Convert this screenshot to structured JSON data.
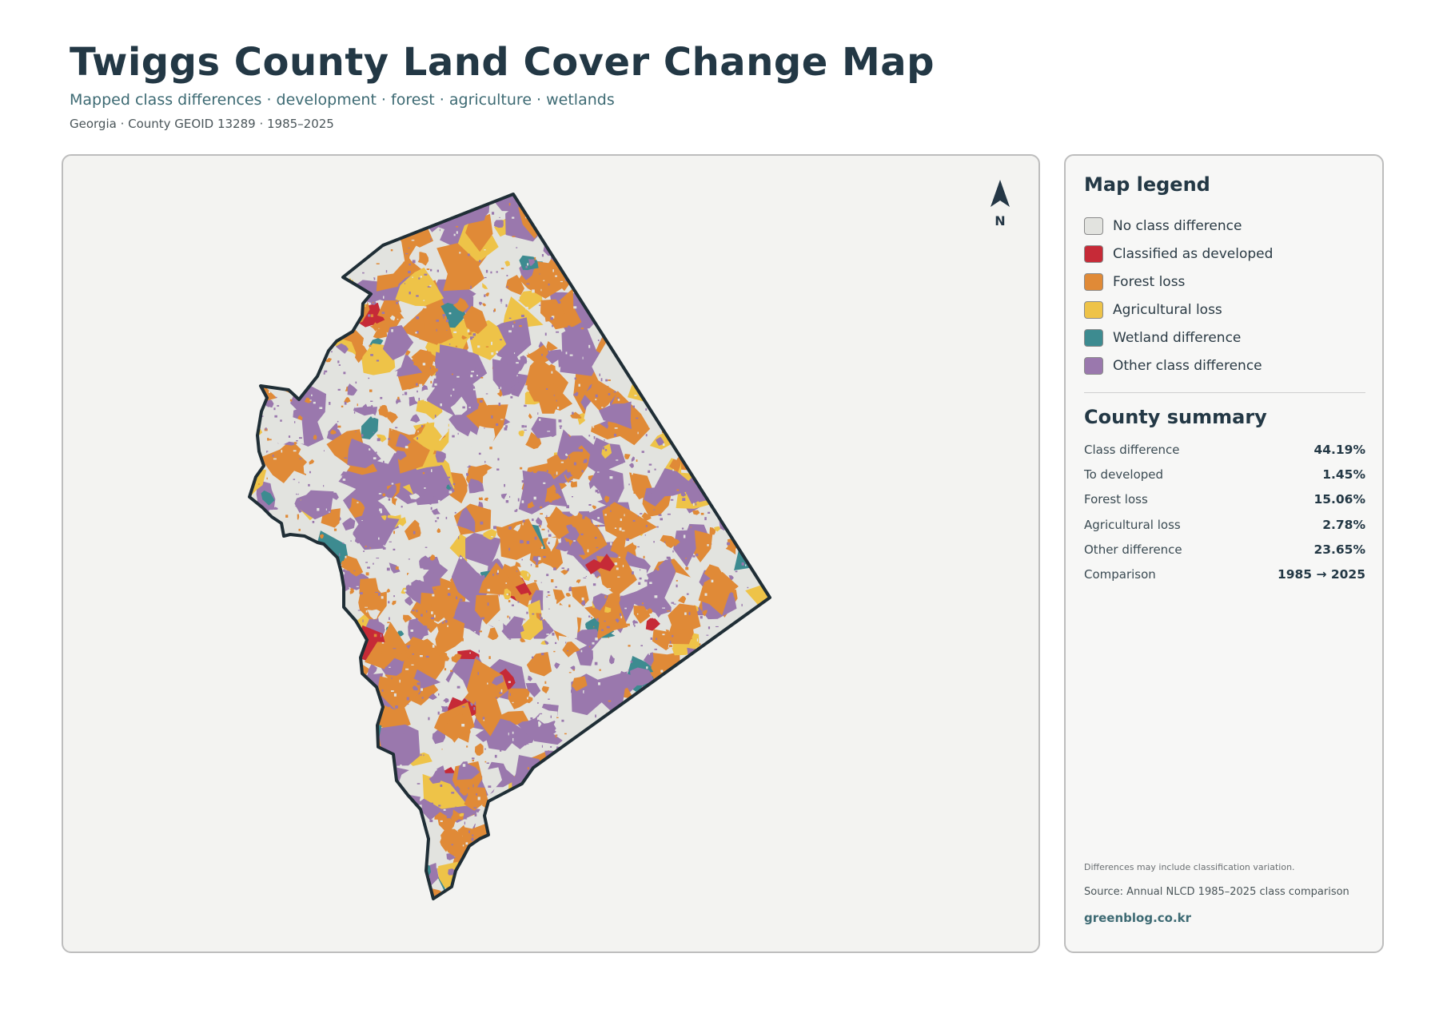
{
  "header": {
    "title": "Twiggs County Land Cover Change Map",
    "subtitle": "Mapped class differences · development · forest · agriculture · wetlands",
    "meta": "Georgia · County GEOID 13289 · 1985–2025"
  },
  "map": {
    "north_label": "N",
    "fill_colors": {
      "no_change": "#e2e3df",
      "developed": "#c62a37",
      "forest": "#e08a37",
      "agriculture": "#eec348",
      "wetland": "#3d8b90",
      "other": "#9a78ad",
      "outline": "#1f2e36"
    }
  },
  "legend": {
    "title": "Map legend",
    "items": [
      {
        "label": "No class difference",
        "color": "#e2e3df"
      },
      {
        "label": "Classified as developed",
        "color": "#c62a37"
      },
      {
        "label": "Forest loss",
        "color": "#e08a37"
      },
      {
        "label": "Agricultural loss",
        "color": "#eec348"
      },
      {
        "label": "Wetland difference",
        "color": "#3d8b90"
      },
      {
        "label": "Other class difference",
        "color": "#9a78ad"
      }
    ]
  },
  "summary": {
    "title": "County summary",
    "rows": [
      {
        "key": "Class difference",
        "value": "44.19%"
      },
      {
        "key": "To developed",
        "value": "1.45%"
      },
      {
        "key": "Forest loss",
        "value": "15.06%"
      },
      {
        "key": "Agricultural loss",
        "value": "2.78%"
      },
      {
        "key": "Other difference",
        "value": "23.65%"
      },
      {
        "key": "Comparison",
        "value": "1985 → 2025"
      }
    ]
  },
  "footer": {
    "note": "Differences may include classification variation.",
    "source": "Source: Annual NLCD 1985–2025 class comparison",
    "site": "greenblog.co.kr"
  }
}
